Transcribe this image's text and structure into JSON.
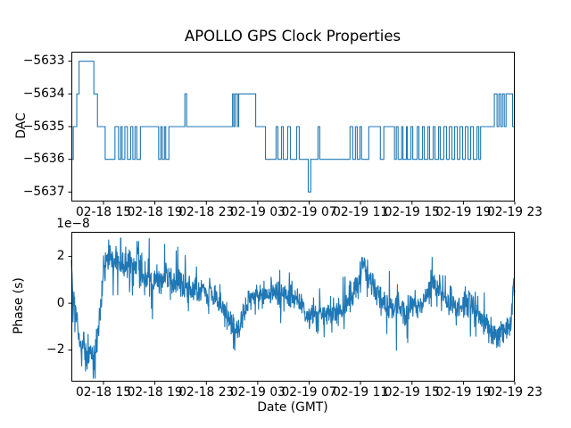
{
  "figure": {
    "title": "APOLLO GPS Clock Properties",
    "background": "#ffffff",
    "line_color": "#1f77b4",
    "spine_color": "#000000"
  },
  "chart_data": [
    {
      "type": "line",
      "name": "dac",
      "drawstyle": "steps-post",
      "ylabel": "DAC",
      "xlabel": "",
      "legend": "none",
      "grid": false,
      "x_unit": "hours since 02-18 00:00 GMT",
      "xlim": [
        12.5,
        47
      ],
      "ylim": [
        -5637.29,
        -5632.71
      ],
      "yticks": [
        -5633,
        -5634,
        -5635,
        -5636,
        -5637
      ],
      "ytick_labels": [
        "−5633",
        "−5634",
        "−5635",
        "−5636",
        "−5637"
      ],
      "xticks": [
        15,
        19,
        23,
        27,
        31,
        35,
        39,
        43,
        47
      ],
      "xtick_labels": [
        "02-18 15",
        "02-18 19",
        "02-18 23",
        "02-19 03",
        "02-19 07",
        "02-19 11",
        "02-19 15",
        "02-19 19",
        "02-19 23"
      ],
      "steps": [
        [
          12.5,
          -5635
        ],
        [
          12.54,
          -5636
        ],
        [
          12.65,
          -5635
        ],
        [
          12.92,
          -5634
        ],
        [
          13.1,
          -5633
        ],
        [
          14.25,
          -5634
        ],
        [
          14.53,
          -5635
        ],
        [
          15.13,
          -5636
        ],
        [
          15.89,
          -5635
        ],
        [
          16.17,
          -5636
        ],
        [
          16.34,
          -5635
        ],
        [
          16.45,
          -5636
        ],
        [
          16.66,
          -5635
        ],
        [
          16.86,
          -5636
        ],
        [
          17.11,
          -5635
        ],
        [
          17.28,
          -5636
        ],
        [
          17.45,
          -5635
        ],
        [
          17.59,
          -5636
        ],
        [
          17.87,
          -5635
        ],
        [
          19.29,
          -5636
        ],
        [
          19.46,
          -5635
        ],
        [
          19.57,
          -5636
        ],
        [
          19.74,
          -5635
        ],
        [
          19.84,
          -5636
        ],
        [
          20.09,
          -5635
        ],
        [
          21.33,
          -5634
        ],
        [
          21.47,
          -5635
        ],
        [
          25.04,
          -5634
        ],
        [
          25.14,
          -5635
        ],
        [
          25.25,
          -5634
        ],
        [
          25.42,
          -5635
        ],
        [
          25.52,
          -5634
        ],
        [
          26.84,
          -5635
        ],
        [
          27.6,
          -5636
        ],
        [
          28.43,
          -5635
        ],
        [
          28.57,
          -5636
        ],
        [
          28.85,
          -5635
        ],
        [
          28.99,
          -5636
        ],
        [
          29.33,
          -5635
        ],
        [
          29.54,
          -5636
        ],
        [
          30.03,
          -5635
        ],
        [
          30.23,
          -5636
        ],
        [
          30.93,
          -5637
        ],
        [
          31.13,
          -5636
        ],
        [
          31.69,
          -5635
        ],
        [
          31.83,
          -5636
        ],
        [
          34.18,
          -5635
        ],
        [
          34.39,
          -5636
        ],
        [
          34.6,
          -5635
        ],
        [
          34.74,
          -5636
        ],
        [
          34.95,
          -5635
        ],
        [
          35.08,
          -5636
        ],
        [
          35.64,
          -5635
        ],
        [
          36.54,
          -5636
        ],
        [
          36.81,
          -5635
        ],
        [
          37.64,
          -5636
        ],
        [
          37.78,
          -5635
        ],
        [
          37.92,
          -5636
        ],
        [
          38.2,
          -5635
        ],
        [
          38.3,
          -5636
        ],
        [
          38.57,
          -5635
        ],
        [
          38.64,
          -5636
        ],
        [
          38.92,
          -5635
        ],
        [
          39.06,
          -5636
        ],
        [
          39.41,
          -5635
        ],
        [
          39.54,
          -5636
        ],
        [
          39.82,
          -5635
        ],
        [
          39.96,
          -5636
        ],
        [
          40.24,
          -5635
        ],
        [
          40.37,
          -5636
        ],
        [
          40.65,
          -5635
        ],
        [
          40.79,
          -5636
        ],
        [
          41.07,
          -5635
        ],
        [
          41.2,
          -5636
        ],
        [
          41.48,
          -5635
        ],
        [
          41.69,
          -5636
        ],
        [
          41.9,
          -5635
        ],
        [
          42.11,
          -5636
        ],
        [
          42.32,
          -5635
        ],
        [
          42.53,
          -5636
        ],
        [
          42.73,
          -5635
        ],
        [
          42.94,
          -5636
        ],
        [
          43.15,
          -5635
        ],
        [
          43.36,
          -5636
        ],
        [
          43.57,
          -5635
        ],
        [
          43.78,
          -5636
        ],
        [
          44.06,
          -5635
        ],
        [
          44.2,
          -5636
        ],
        [
          44.34,
          -5635
        ],
        [
          45.41,
          -5634
        ],
        [
          45.62,
          -5635
        ],
        [
          45.76,
          -5634
        ],
        [
          45.9,
          -5635
        ],
        [
          46.04,
          -5634
        ],
        [
          46.18,
          -5635
        ],
        [
          46.32,
          -5634
        ],
        [
          46.83,
          -5635
        ]
      ]
    },
    {
      "type": "line",
      "name": "phase",
      "ylabel": "Phase (s)",
      "xlabel": "Date (GMT)",
      "offset_text": "1e−8",
      "legend": "none",
      "grid": false,
      "x_unit": "hours since 02-18 00:00 GMT",
      "y_unit": "1e-8 s",
      "xlim": [
        12.5,
        47
      ],
      "ylim": [
        -3.35,
        3.05
      ],
      "yticks": [
        -2,
        0,
        2
      ],
      "ytick_labels": [
        "−2",
        "0",
        "2"
      ],
      "xticks": [
        15,
        19,
        23,
        27,
        31,
        35,
        39,
        43,
        47
      ],
      "xtick_labels": [
        "02-18 15",
        "02-18 19",
        "02-18 23",
        "02-19 03",
        "02-19 07",
        "02-19 11",
        "02-19 15",
        "02-19 19",
        "02-19 23"
      ],
      "trend_points": [
        [
          12.5,
          1.4
        ],
        [
          12.64,
          0.6
        ],
        [
          12.85,
          -0.6
        ],
        [
          13.12,
          -1.5
        ],
        [
          13.4,
          -1.9
        ],
        [
          13.75,
          -2.2
        ],
        [
          14.09,
          -2.4
        ],
        [
          14.3,
          -2.3
        ],
        [
          14.5,
          -1.6
        ],
        [
          14.7,
          -0.5
        ],
        [
          14.9,
          0.6
        ],
        [
          15.13,
          1.6
        ],
        [
          15.48,
          1.9
        ],
        [
          15.76,
          1.7
        ],
        [
          16.03,
          1.8
        ],
        [
          16.31,
          1.9
        ],
        [
          16.59,
          1.5
        ],
        [
          17.0,
          1.7
        ],
        [
          17.35,
          1.4
        ],
        [
          17.63,
          2.0
        ],
        [
          17.9,
          1.3
        ],
        [
          18.39,
          1.2
        ],
        [
          18.87,
          0.9
        ],
        [
          19.43,
          1.0
        ],
        [
          19.98,
          1.2
        ],
        [
          20.53,
          0.8
        ],
        [
          21.16,
          0.9
        ],
        [
          21.78,
          0.5
        ],
        [
          22.34,
          0.7
        ],
        [
          22.89,
          0.4
        ],
        [
          23.44,
          0.5
        ],
        [
          24.0,
          0.1
        ],
        [
          24.41,
          -0.2
        ],
        [
          24.83,
          -0.8
        ],
        [
          25.25,
          -1.3
        ],
        [
          25.66,
          -0.9
        ],
        [
          26.08,
          -0.3
        ],
        [
          26.56,
          0.2
        ],
        [
          27.05,
          0.4
        ],
        [
          27.6,
          0.3
        ],
        [
          28.16,
          0.5
        ],
        [
          28.71,
          0.3
        ],
        [
          29.26,
          0.4
        ],
        [
          29.82,
          0.2
        ],
        [
          30.37,
          -0.1
        ],
        [
          30.79,
          -0.5
        ],
        [
          31.2,
          -0.3
        ],
        [
          31.62,
          -0.6
        ],
        [
          32.03,
          -0.4
        ],
        [
          32.59,
          -0.3
        ],
        [
          33.14,
          -0.5
        ],
        [
          33.7,
          -0.2
        ],
        [
          34.18,
          0.1
        ],
        [
          34.6,
          0.5
        ],
        [
          34.94,
          1.1
        ],
        [
          35.22,
          1.9
        ],
        [
          35.5,
          1.3
        ],
        [
          35.84,
          0.7
        ],
        [
          36.33,
          0.4
        ],
        [
          36.88,
          0.0
        ],
        [
          37.44,
          -0.3
        ],
        [
          37.99,
          -0.1
        ],
        [
          38.54,
          -0.4
        ],
        [
          39.1,
          -0.2
        ],
        [
          39.65,
          0.0
        ],
        [
          40.21,
          0.5
        ],
        [
          40.62,
          1.0
        ],
        [
          41.04,
          0.6
        ],
        [
          41.45,
          0.2
        ],
        [
          42.01,
          0.0
        ],
        [
          42.56,
          -0.2
        ],
        [
          43.11,
          0.1
        ],
        [
          43.67,
          -0.2
        ],
        [
          44.22,
          -0.5
        ],
        [
          44.77,
          -0.8
        ],
        [
          45.26,
          -1.2
        ],
        [
          45.6,
          -1.4
        ],
        [
          45.95,
          -1.1
        ],
        [
          46.3,
          -1.2
        ],
        [
          46.57,
          -0.7
        ],
        [
          46.78,
          -0.3
        ],
        [
          46.92,
          0.5
        ],
        [
          47.0,
          0.8
        ]
      ],
      "noise_sigma": 0.3,
      "n_points": 1380,
      "seed": 42
    }
  ]
}
